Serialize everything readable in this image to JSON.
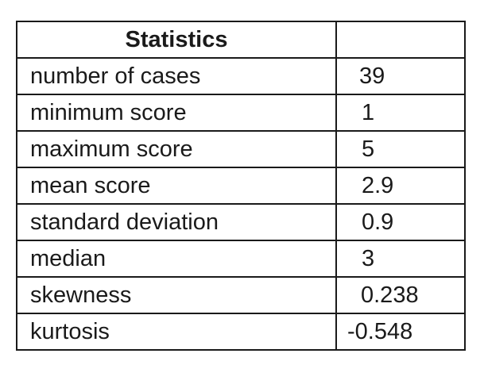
{
  "table": {
    "header": {
      "title": "Statistics",
      "value": ""
    },
    "rows": [
      {
        "label": "number of cases",
        "value": "39"
      },
      {
        "label": "minimum score",
        "value": "1"
      },
      {
        "label": "maximum score",
        "value": "5"
      },
      {
        "label": "mean score",
        "value": "2.9"
      },
      {
        "label": "standard deviation",
        "value": "0.9"
      },
      {
        "label": "median",
        "value": "3"
      },
      {
        "label": "skewness",
        "value": "0.238"
      },
      {
        "label": "kurtosis",
        "value": "-0.548"
      }
    ]
  }
}
